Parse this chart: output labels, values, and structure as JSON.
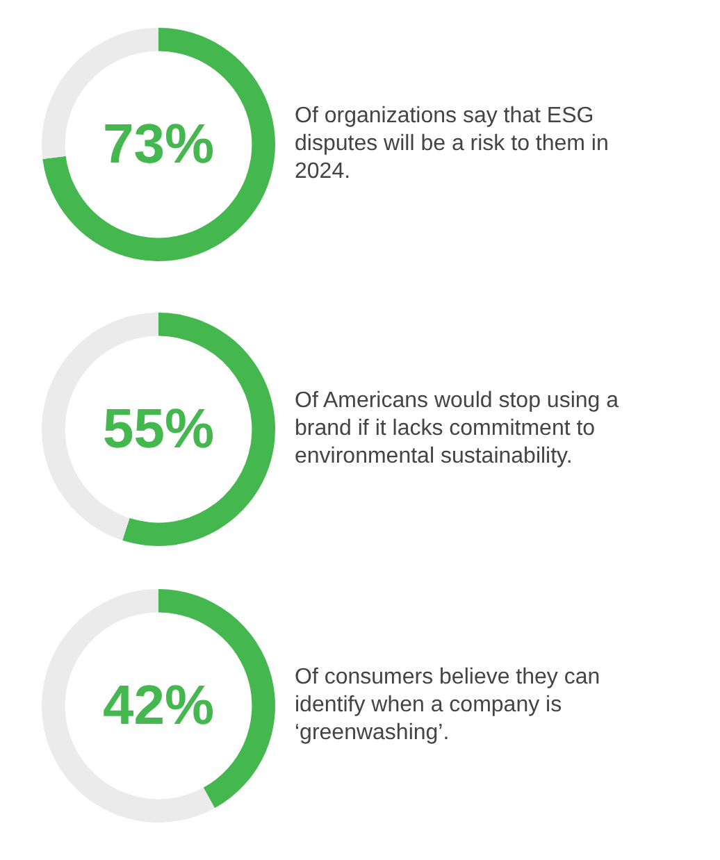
{
  "chart_data": [
    {
      "type": "donut",
      "categories": [
        null,
        null
      ],
      "values": [
        73,
        27
      ],
      "colors": [
        "#44b84f",
        "#ebebeb"
      ],
      "value_labels": [
        "73%",
        null
      ],
      "annotations": [
        "Of organizations say that ESG disputes will be a risk to them in 2024."
      ],
      "legend": false
    },
    {
      "type": "donut",
      "categories": [
        null,
        null
      ],
      "values": [
        55,
        45
      ],
      "colors": [
        "#44b84f",
        "#ebebeb"
      ],
      "value_labels": [
        "55%",
        null
      ],
      "annotations": [
        "Of Americans would stop using a brand if it lacks commitment to environmental sustainability."
      ],
      "legend": false
    },
    {
      "type": "donut",
      "categories": [
        null,
        null
      ],
      "values": [
        42,
        58
      ],
      "colors": [
        "#44b84f",
        "#ebebeb"
      ],
      "value_labels": [
        "42%",
        null
      ],
      "annotations": [
        "Of consumers believe they can identify when a company is ‘greenwashing’."
      ],
      "legend": false
    }
  ]
}
